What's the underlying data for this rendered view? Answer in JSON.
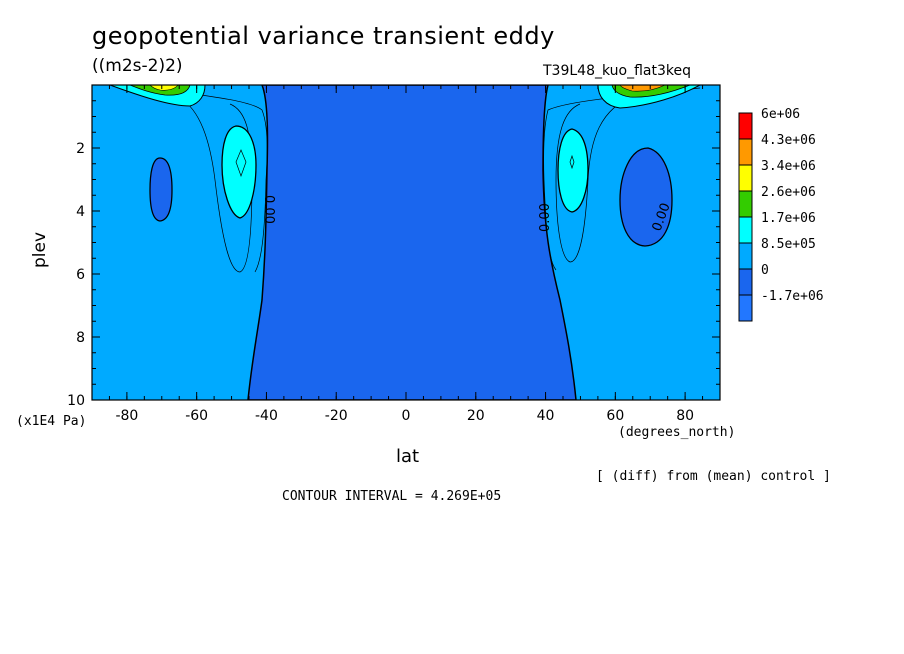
{
  "chart_data": {
    "type": "contour",
    "title": "geopotential variance transient eddy",
    "units": "((m2s-2)2)",
    "experiment": "T39L48_kuo_flat3keq",
    "xlabel": "lat",
    "ylabel": "plev",
    "x_units": "(degrees_north)",
    "y_units": "(x1E4 Pa)",
    "xlim": [
      -90,
      90
    ],
    "ylim": [
      10,
      0
    ],
    "x_ticks": [
      -80,
      -60,
      -40,
      -20,
      0,
      20,
      40,
      60,
      80
    ],
    "y_ticks": [
      2,
      4,
      6,
      8,
      10
    ],
    "contour_interval_text": "CONTOUR INTERVAL = 4.269E+05",
    "comparison_note": "[ (diff) from (mean) control ]",
    "contour_labels": [
      "0.00",
      "0.00",
      "0.00"
    ],
    "legend": {
      "placement": "right",
      "labels": [
        "6e+06",
        "4.3e+06",
        "3.4e+06",
        "2.6e+06",
        "1.7e+06",
        "8.5e+05",
        "0",
        "-1.7e+06"
      ],
      "colors": [
        "#ff0000",
        "#ff9900",
        "#ffff00",
        "#33cc00",
        "#00ffff",
        "#00aaff",
        "#1a66ee",
        "#2277ff"
      ]
    },
    "regions": [
      {
        "name": "negative-core-equatorial",
        "level": "<0",
        "lat_range": [
          -40,
          40
        ],
        "plev_range": [
          0,
          10
        ]
      },
      {
        "name": "positive-sh-lobe",
        "level": "8.5e+05",
        "lat_center": -47,
        "plev_center": 2.5
      },
      {
        "name": "positive-nh-lobe",
        "level": "8.5e+05",
        "lat_center": 46,
        "plev_center": 2.5
      },
      {
        "name": "negative-sh-cell",
        "level": "<0",
        "lat_center": -70,
        "plev_center": 3.3
      },
      {
        "name": "negative-nh-cell",
        "level": "<0",
        "lat_center": 68,
        "plev_center": 3.3
      }
    ]
  }
}
